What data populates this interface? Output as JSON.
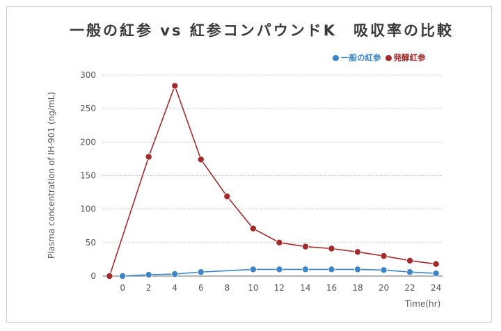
{
  "title": "一般の紅参 vs 紅参コンパウンドK　吸収率の比較",
  "colors": {
    "series1": "#3d85c6",
    "series2": "#a12a2a",
    "grid": "#c8c8c8",
    "axis": "#888888",
    "text": "#555555"
  },
  "chart_data": {
    "type": "line",
    "title": "一般の紅参 vs 紅参コンパウンドK　吸収率の比較",
    "xlabel": "Time(hr)",
    "ylabel": "Plasma concentration of IH-901 (ng/mL)",
    "ylim": [
      0,
      300
    ],
    "yticks": [
      0,
      50,
      100,
      150,
      200,
      250,
      300
    ],
    "x_tick_labels": [
      "0",
      "2",
      "4",
      "6",
      "8",
      "10",
      "12",
      "14",
      "16",
      "18",
      "20",
      "22",
      "24"
    ],
    "grid": "horizontal-dotted",
    "legend_position": "top-right",
    "series": [
      {
        "name": "一般の紅参",
        "color": "#3d85c6",
        "x": [
          0,
          2,
          4,
          6,
          10,
          12,
          14,
          16,
          18,
          20,
          22,
          24
        ],
        "y": [
          0,
          2,
          3,
          6,
          10,
          10,
          10,
          10,
          10,
          9,
          6,
          4
        ]
      },
      {
        "name": "発酵紅参",
        "color": "#a12a2a",
        "x": [
          -1,
          2,
          4,
          6,
          8,
          10,
          12,
          14,
          16,
          18,
          20,
          22,
          24
        ],
        "y": [
          0,
          178,
          284,
          174,
          119,
          71,
          50,
          44,
          41,
          36,
          30,
          23,
          18
        ]
      }
    ]
  }
}
